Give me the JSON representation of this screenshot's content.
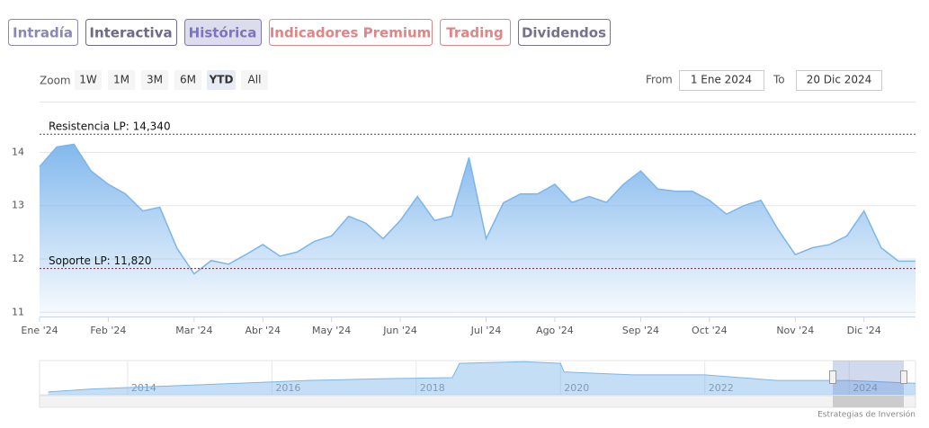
{
  "tabs": [
    "Intradía",
    "Interactiva",
    "Histórica",
    "Indicadores Premium",
    "Trading",
    "Dividendos"
  ],
  "zoom": {
    "label": "Zoom",
    "buttons": [
      "1W",
      "1M",
      "3M",
      "6M",
      "YTD",
      "All"
    ]
  },
  "range": {
    "from_label": "From",
    "from": "1 Ene 2024",
    "to_label": "To",
    "to": "20 Dic 2024"
  },
  "credit": "Estrategias de Inversión",
  "chart_data": [
    {
      "type": "area",
      "color": "#7cb5ec",
      "grid": true,
      "categories": [
        "Ene '24",
        null,
        null,
        null,
        "Feb '24",
        null,
        null,
        null,
        null,
        "Mar '24",
        null,
        null,
        null,
        "Abr '24",
        null,
        null,
        null,
        "May '24",
        null,
        null,
        null,
        "Jun '24",
        null,
        null,
        null,
        null,
        "Jul '24",
        null,
        null,
        null,
        "Ago '24",
        null,
        null,
        null,
        null,
        "Sep '24",
        null,
        null,
        null,
        "Oct '24",
        null,
        null,
        null,
        null,
        "Nov '24",
        null,
        null,
        null,
        "Dic '24",
        null,
        null,
        null
      ],
      "values": [
        13.73,
        14.1,
        14.15,
        13.65,
        13.4,
        13.22,
        12.9,
        12.97,
        12.2,
        11.72,
        11.97,
        11.9,
        12.08,
        12.27,
        12.05,
        12.13,
        12.33,
        12.43,
        12.8,
        12.67,
        12.38,
        12.72,
        13.17,
        12.72,
        12.8,
        13.9,
        12.38,
        13.05,
        13.22,
        13.22,
        13.4,
        13.06,
        13.17,
        13.06,
        13.4,
        13.65,
        13.31,
        13.27,
        13.27,
        13.1,
        12.84,
        13.0,
        13.1,
        12.55,
        12.08,
        12.21,
        12.27,
        12.43,
        12.9,
        12.21,
        11.96,
        11.96
      ],
      "ylim": [
        10.92,
        14.9
      ],
      "yticks": [
        11,
        12,
        13,
        14
      ],
      "annotations": [
        {
          "label": "Resistencia LP: 14,340",
          "value": 14.34,
          "color": "#2f5a2f"
        },
        {
          "label": "Soporte LP: 11,820",
          "value": 11.82,
          "color": "#7a2336"
        }
      ]
    },
    {
      "type": "navigator",
      "color": "#7cb5ec",
      "x": [
        2012.9,
        2013.5,
        2014.5,
        2015.5,
        2016.5,
        2017.5,
        2018.5,
        2018.6,
        2019.5,
        2020,
        2020.05,
        2021,
        2022,
        2023,
        2024,
        2024.92
      ],
      "values": [
        10.5,
        11,
        11.5,
        12,
        12.5,
        12.8,
        13,
        15.5,
        15.8,
        15.5,
        14,
        13.5,
        13.5,
        12.5,
        12.5,
        12
      ],
      "xlim": [
        2012.78,
        2024.92
      ],
      "ylim": [
        10,
        16
      ],
      "xticks": [
        2014,
        2016,
        2018,
        2020,
        2022,
        2024
      ]
    }
  ]
}
